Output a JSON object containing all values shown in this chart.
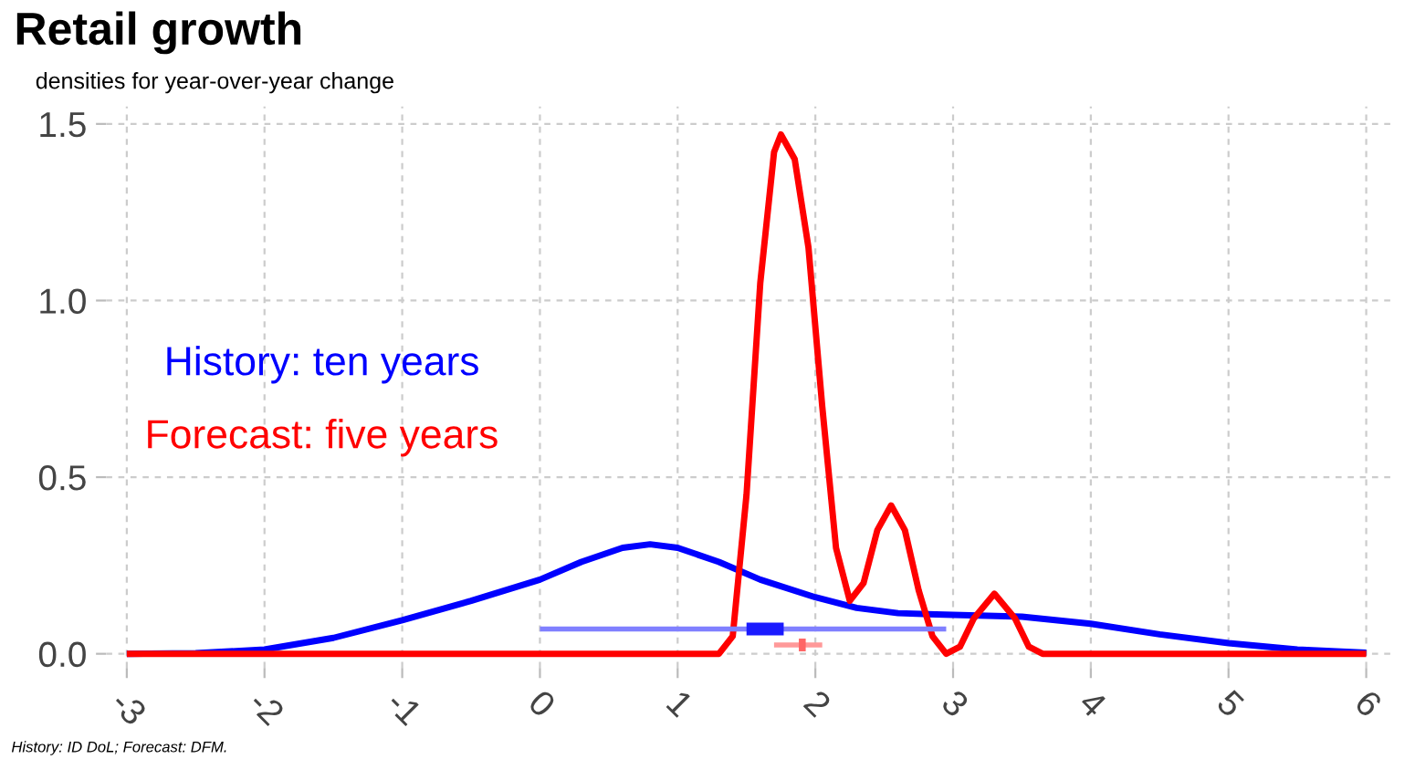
{
  "chart_data": {
    "type": "line",
    "title": "Retail growth",
    "subtitle": "densities for year-over-year change",
    "annotations": [
      "History: ID DoL; Forecast: DFM."
    ],
    "xlim": [
      -3.15,
      6.2
    ],
    "ylim": [
      -0.04,
      1.55
    ],
    "xticks": [
      -3,
      -2,
      -1,
      0,
      1,
      2,
      3,
      4,
      5,
      6
    ],
    "yticks": [
      {
        "value": 0,
        "label": "0.0"
      },
      {
        "value": 0.5,
        "label": "0.5"
      },
      {
        "value": 1.0,
        "label": "1.0"
      },
      {
        "value": 1.5,
        "label": "1.5"
      }
    ],
    "grid": true,
    "legend": "left",
    "line_style": "solid",
    "marker": "none",
    "series": [
      {
        "name": "History: ten years",
        "color": "#0000ff",
        "x": [
          -3,
          -2.5,
          -2,
          -1.5,
          -1,
          -0.5,
          0,
          0.3,
          0.6,
          0.8,
          1.0,
          1.3,
          1.6,
          2.0,
          2.3,
          2.6,
          3.0,
          3.5,
          4.0,
          4.5,
          5.0,
          5.5,
          6
        ],
        "values": [
          0,
          0.002,
          0.012,
          0.045,
          0.095,
          0.15,
          0.21,
          0.26,
          0.3,
          0.31,
          0.3,
          0.26,
          0.21,
          0.16,
          0.13,
          0.115,
          0.11,
          0.105,
          0.085,
          0.055,
          0.03,
          0.012,
          0.003
        ]
      },
      {
        "name": "Forecast: five years",
        "color": "#ff0000",
        "x": [
          -3,
          1.3,
          1.4,
          1.5,
          1.6,
          1.7,
          1.75,
          1.85,
          1.95,
          2.05,
          2.15,
          2.25,
          2.35,
          2.45,
          2.55,
          2.65,
          2.75,
          2.85,
          2.95,
          3.05,
          3.15,
          3.3,
          3.45,
          3.55,
          3.65,
          6
        ],
        "values": [
          0,
          0,
          0.05,
          0.45,
          1.05,
          1.42,
          1.47,
          1.4,
          1.15,
          0.7,
          0.3,
          0.15,
          0.2,
          0.35,
          0.42,
          0.35,
          0.18,
          0.05,
          0.0,
          0.02,
          0.1,
          0.17,
          0.1,
          0.02,
          0,
          0
        ]
      },
      {
        "color": "#8080ff",
        "x": [
          0,
          2.95
        ],
        "values": [
          0.07,
          0.07
        ]
      },
      {
        "color": "#1a1aff",
        "x": [
          1.5,
          1.77
        ],
        "values": [
          0.07,
          0.07
        ]
      },
      {
        "color": "#ff9999",
        "x": [
          1.7,
          2.05
        ],
        "values": [
          0.025,
          0.025
        ]
      },
      {
        "color": "#ff6666",
        "x": [
          1.88,
          1.93
        ],
        "values": [
          0.025,
          0.025
        ]
      }
    ]
  }
}
